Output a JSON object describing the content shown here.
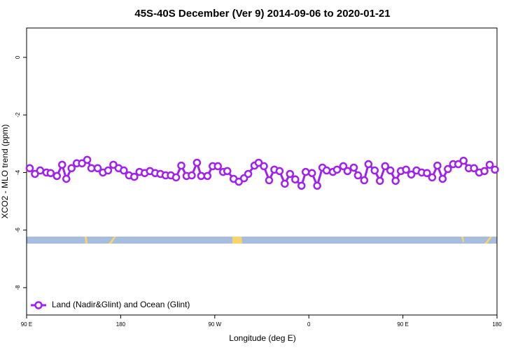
{
  "chart_data": {
    "type": "line",
    "title": "45S-40S December (Ver 9)   2014-09-06 to 2020-01-21",
    "xlabel": "Longitude (deg E)",
    "ylabel": "XCO2 - MLO trend (ppm)",
    "xlim": [
      90,
      540
    ],
    "xticks": [
      {
        "value": 90,
        "label": "90 E"
      },
      180,
      {
        "value": 270,
        "label": "90 W"
      },
      {
        "value": 360,
        "label": "0"
      },
      {
        "value": 450,
        "label": "90 E"
      },
      {
        "value": 540,
        "label": "180"
      }
    ],
    "ylim": [
      -8.95,
      1.02
    ],
    "yticks": [
      0,
      -2,
      -4,
      -6,
      -8
    ],
    "legend": "bottom-left",
    "x": [
      93,
      98,
      103,
      109,
      113,
      119,
      124,
      128,
      133,
      138,
      143,
      148,
      152,
      158,
      163,
      168,
      173,
      178,
      183,
      188,
      193,
      198,
      203,
      208,
      213,
      218,
      223,
      228,
      233,
      238,
      243,
      248,
      253,
      257,
      263,
      268,
      273,
      278,
      282,
      288,
      293,
      298,
      302,
      308,
      312,
      317,
      322,
      327,
      332,
      337,
      342,
      347,
      353,
      357,
      363,
      368,
      373,
      377,
      383,
      387,
      393,
      397,
      403,
      407,
      413,
      417,
      423,
      428,
      433,
      438,
      443,
      448,
      453,
      458,
      463,
      468,
      473,
      478,
      483,
      488,
      493,
      498,
      503,
      508,
      513,
      518,
      523,
      528,
      533,
      538
    ],
    "series": [
      {
        "name": "Land (Nadir&Glint) and Ocean (Glint)",
        "color": "#a020f0",
        "values": [
          -3.85,
          -4.05,
          -3.93,
          -4.0,
          -4.02,
          -4.12,
          -3.73,
          -4.22,
          -3.85,
          -3.68,
          -3.68,
          -3.56,
          -3.85,
          -3.85,
          -4.0,
          -3.93,
          -3.73,
          -3.85,
          -3.93,
          -4.1,
          -4.15,
          -3.98,
          -4.02,
          -3.95,
          -4.02,
          -4.05,
          -4.1,
          -4.1,
          -4.17,
          -3.76,
          -4.12,
          -4.1,
          -3.66,
          -4.12,
          -4.12,
          -3.78,
          -3.78,
          -3.98,
          -3.95,
          -4.22,
          -4.32,
          -4.2,
          -4.05,
          -3.76,
          -3.66,
          -3.78,
          -4.27,
          -3.9,
          -3.95,
          -4.39,
          -4.05,
          -4.24,
          -4.46,
          -3.98,
          -4.02,
          -4.46,
          -3.83,
          -3.93,
          -3.98,
          -3.9,
          -3.78,
          -3.95,
          -3.83,
          -4.1,
          -4.27,
          -3.71,
          -3.93,
          -4.29,
          -3.78,
          -3.93,
          -4.29,
          -3.95,
          -3.9,
          -4.07,
          -3.93,
          -4.0,
          -4.02,
          -4.17,
          -3.76,
          -4.22,
          -3.88,
          -3.71,
          -3.71,
          -3.59,
          -3.85,
          -3.85,
          -4.0,
          -3.95,
          -3.73,
          -3.9
        ]
      }
    ]
  }
}
